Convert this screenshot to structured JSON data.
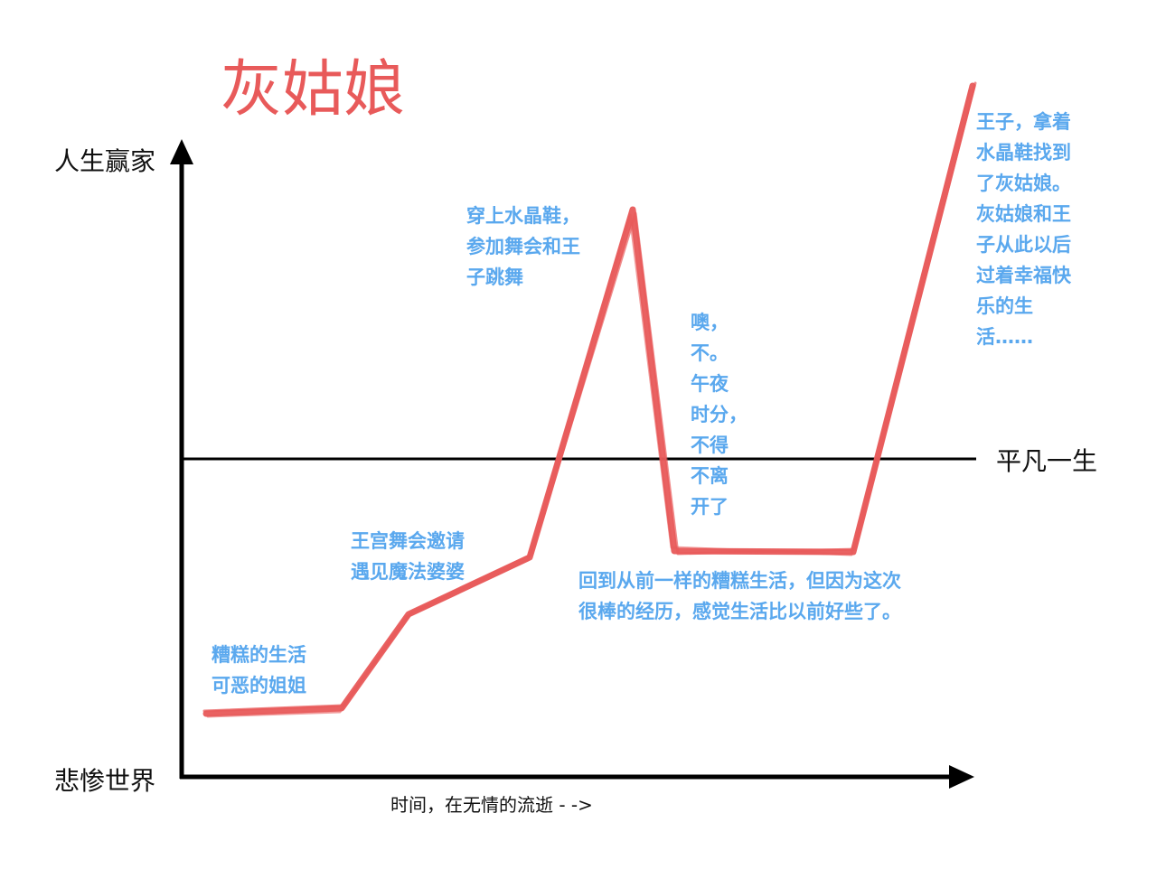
{
  "title": "灰姑娘",
  "axes": {
    "y_top_label": "人生赢家",
    "y_bottom_label": "悲惨世界",
    "baseline_label": "平凡一生",
    "x_label": "时间，在无情的流逝 - ->"
  },
  "colors": {
    "curve": "#e85a5a",
    "annotation": "#5aa8ee",
    "axis": "#000000",
    "title": "#e85a5a"
  },
  "annotations": {
    "start": [
      "糟糕的生活",
      "可恶的姐姐"
    ],
    "invitation": [
      "王宫舞会邀请",
      "遇见魔法婆婆"
    ],
    "peak": [
      "穿上水晶鞋，",
      "参加舞会和王",
      "子跳舞"
    ],
    "midnight": [
      "噢，",
      "不。",
      "午夜",
      "时分，",
      "不得",
      "不离",
      "开了"
    ],
    "plateau": [
      "回到从前一样的糟糕生活，但因为这次",
      "很棒的经历，感觉生活比以前好些了。"
    ],
    "ending": [
      "王子，拿着",
      "水晶鞋找到",
      "了灰姑娘。",
      "灰姑娘和王",
      "子从此以后",
      "过着幸福快",
      "乐的生",
      "活……"
    ]
  }
}
